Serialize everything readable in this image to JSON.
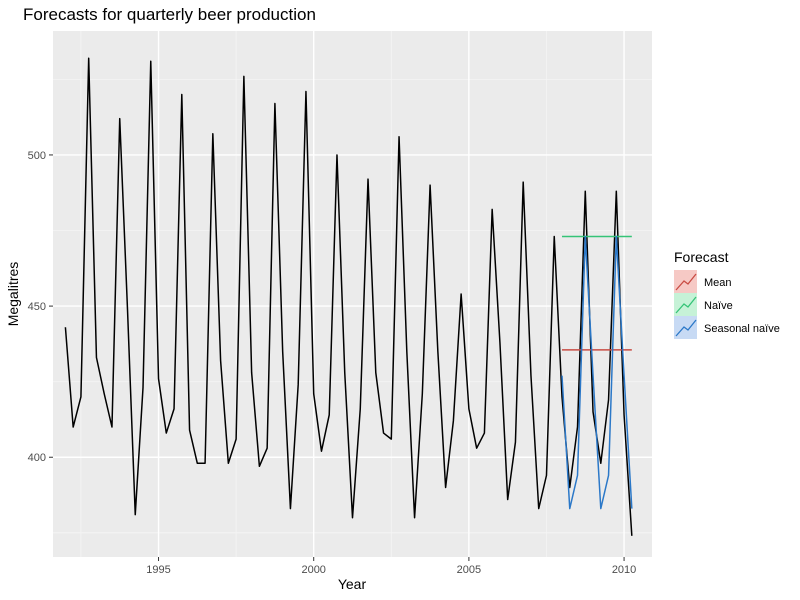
{
  "chart_data": {
    "type": "line",
    "title": "Forecasts for quarterly beer production",
    "xlabel": "Year",
    "ylabel": "Megalitres",
    "xlim": [
      1991.6,
      2010.9
    ],
    "ylim": [
      367,
      541
    ],
    "x_ticks": [
      1995,
      2000,
      2005,
      2010
    ],
    "y_ticks": [
      400,
      450,
      500
    ],
    "grid": true,
    "legend": {
      "title": "Forecast",
      "placement": "right",
      "entries": [
        {
          "label": "Mean",
          "color": "#c94c44"
        },
        {
          "label": "Naïve",
          "color": "#35c477"
        },
        {
          "label": "Seasonal naïve",
          "color": "#2b78c8"
        }
      ]
    },
    "series": [
      {
        "color": "#000000",
        "x": [
          1992.0,
          1992.25,
          1992.5,
          1992.75,
          1993.0,
          1993.25,
          1993.5,
          1993.75,
          1994.0,
          1994.25,
          1994.5,
          1994.75,
          1995.0,
          1995.25,
          1995.5,
          1995.75,
          1996.0,
          1996.25,
          1996.5,
          1996.75,
          1997.0,
          1997.25,
          1997.5,
          1997.75,
          1998.0,
          1998.25,
          1998.5,
          1998.75,
          1999.0,
          1999.25,
          1999.5,
          1999.75,
          2000.0,
          2000.25,
          2000.5,
          2000.75,
          2001.0,
          2001.25,
          2001.5,
          2001.75,
          2002.0,
          2002.25,
          2002.5,
          2002.75,
          2003.0,
          2003.25,
          2003.5,
          2003.75,
          2004.0,
          2004.25,
          2004.5,
          2004.75,
          2005.0,
          2005.25,
          2005.5,
          2005.75,
          2006.0,
          2006.25,
          2006.5,
          2006.75,
          2007.0,
          2007.25,
          2007.5,
          2007.75,
          2008.0,
          2008.25,
          2008.5,
          2008.75,
          2009.0,
          2009.25,
          2009.5,
          2009.75,
          2010.0,
          2010.25
        ],
        "values": [
          443,
          410,
          420,
          532,
          433,
          421,
          410,
          512,
          449,
          381,
          423,
          531,
          426,
          408,
          416,
          520,
          409,
          398,
          398,
          507,
          432,
          398,
          406,
          526,
          428,
          397,
          403,
          517,
          435,
          383,
          424,
          521,
          421,
          402,
          414,
          500,
          428,
          380,
          416,
          492,
          428,
          408,
          406,
          506,
          435,
          380,
          421,
          490,
          435,
          390,
          412,
          454,
          416,
          403,
          408,
          482,
          438,
          386,
          405,
          491,
          427,
          383,
          394,
          473,
          420,
          390,
          410,
          488,
          415,
          398,
          419,
          488,
          414,
          374
        ]
      },
      {
        "name": "Mean",
        "color": "#c94c44",
        "x": [
          2008.0,
          2010.25
        ],
        "values": [
          435.5,
          435.5
        ]
      },
      {
        "name": "Naïve",
        "color": "#35c477",
        "x": [
          2008.0,
          2010.25
        ],
        "values": [
          473,
          473
        ]
      },
      {
        "name": "Seasonal naïve",
        "color": "#2b78c8",
        "x": [
          2008.0,
          2008.25,
          2008.5,
          2008.75,
          2009.0,
          2009.25,
          2009.5,
          2009.75,
          2010.0,
          2010.25
        ],
        "values": [
          427,
          383,
          394,
          473,
          427,
          383,
          394,
          473,
          427,
          383
        ]
      }
    ]
  }
}
